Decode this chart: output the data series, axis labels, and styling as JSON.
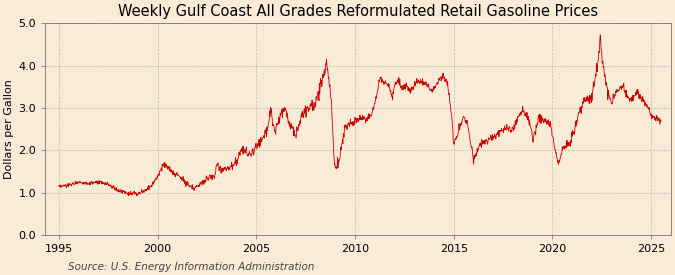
{
  "title": "Weekly Gulf Coast All Grades Reformulated Retail Gasoline Prices",
  "ylabel": "Dollars per Gallon",
  "source": "Source: U.S. Energy Information Administration",
  "line_color": "#cc0000",
  "background_color": "#faebd7",
  "plot_background": "#faebd7",
  "grid_color": "#999999",
  "ylim": [
    0.0,
    5.0
  ],
  "yticks": [
    0.0,
    1.0,
    2.0,
    3.0,
    4.0,
    5.0
  ],
  "xlim_start": 1994.3,
  "xlim_end": 2026.0,
  "xticks": [
    1995,
    2000,
    2005,
    2010,
    2015,
    2020,
    2025
  ],
  "title_fontsize": 10.5,
  "ylabel_fontsize": 8,
  "source_fontsize": 7.5,
  "tick_fontsize": 8
}
